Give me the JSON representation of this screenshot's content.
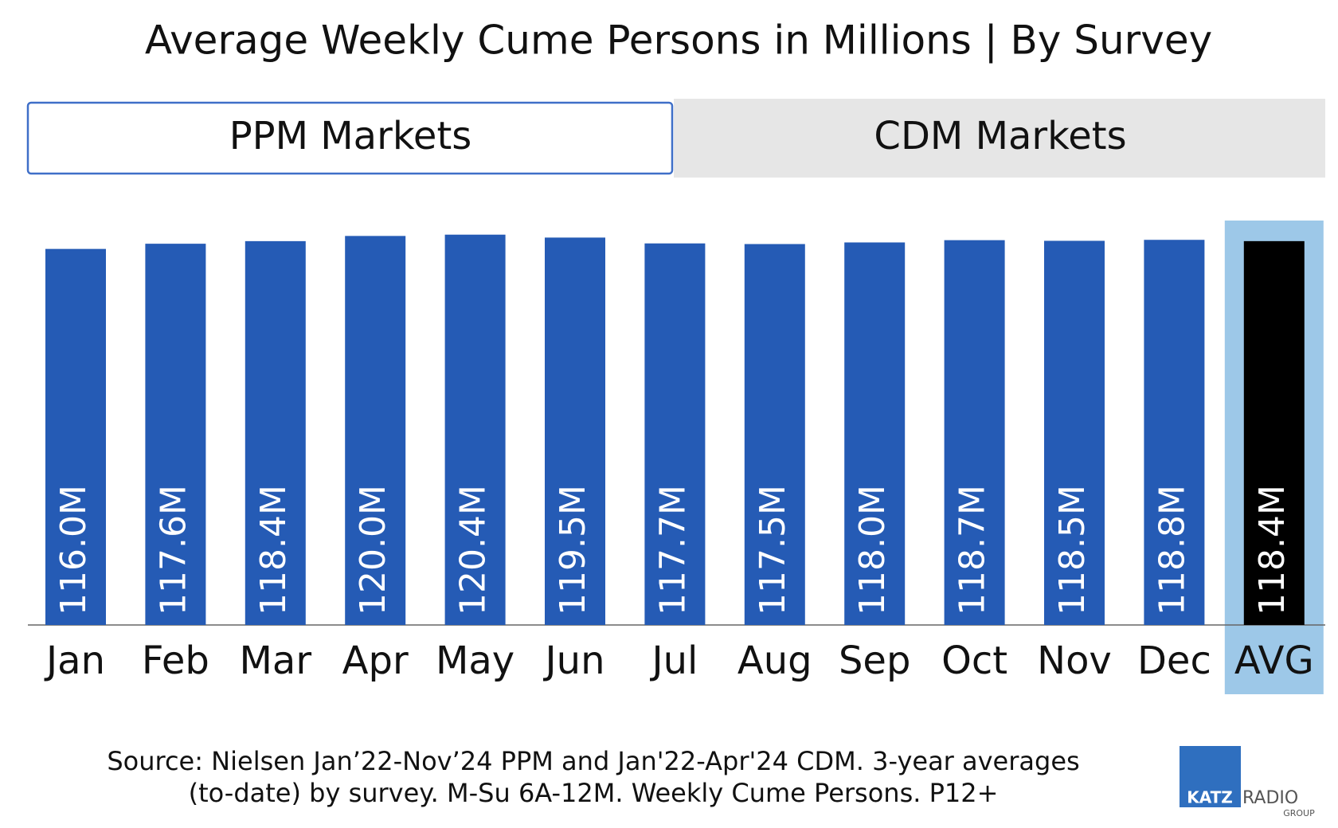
{
  "chart_data": {
    "type": "bar",
    "title": "Average Weekly Cume Persons in Millions | By Survey",
    "tabs": [
      "PPM Markets",
      "CDM Markets"
    ],
    "categories": [
      "Jan",
      "Feb",
      "Mar",
      "Apr",
      "May",
      "Jun",
      "Jul",
      "Aug",
      "Sep",
      "Oct",
      "Nov",
      "Dec",
      "AVG"
    ],
    "values": [
      116.0,
      117.6,
      118.4,
      120.0,
      120.4,
      119.5,
      117.7,
      117.5,
      118.0,
      118.7,
      118.5,
      118.8,
      118.4
    ],
    "value_labels": [
      "116.0M",
      "117.6M",
      "118.4M",
      "120.0M",
      "120.4M",
      "119.5M",
      "117.7M",
      "117.5M",
      "118.0M",
      "118.7M",
      "118.5M",
      "118.8M",
      "118.4M"
    ],
    "colors": [
      "#255bb5",
      "#255bb5",
      "#255bb5",
      "#255bb5",
      "#255bb5",
      "#255bb5",
      "#255bb5",
      "#255bb5",
      "#255bb5",
      "#255bb5",
      "#255bb5",
      "#255bb5",
      "#000000"
    ],
    "highlight": {
      "category_index": 12,
      "color": "#9dc8e8"
    },
    "ylim": [
      0,
      125
    ],
    "source": [
      "Source: Nielsen Jan’22-Nov’24 PPM and Jan'22-Apr'24 CDM. 3-year averages",
      "(to-date) by survey. M-Su 6A-12M. Weekly Cume Persons. P12+"
    ],
    "logo": {
      "brand": "KATZ",
      "line1": "RADIO",
      "line2": "GROUP"
    }
  }
}
